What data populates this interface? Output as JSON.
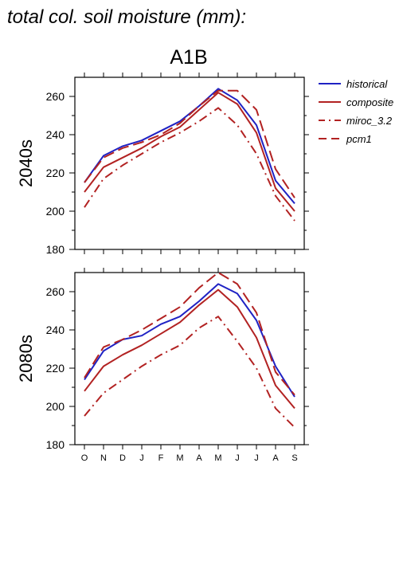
{
  "page": {
    "title": "total col. soil moisture (mm):",
    "scenario": "A1B"
  },
  "legend": [
    {
      "name": "historical",
      "color": "#1f22c4",
      "dash": "solid"
    },
    {
      "name": "composite",
      "color": "#b22222",
      "dash": "solid"
    },
    {
      "name": "miroc_3.2",
      "color": "#b22222",
      "dash": "dashdot"
    },
    {
      "name": "pcm1",
      "color": "#b22222",
      "dash": "dashed"
    }
  ],
  "chart_data": [
    {
      "type": "line",
      "title": "A1B",
      "ylabel": "2040s",
      "xlabel": "",
      "categories": [
        "O",
        "N",
        "D",
        "J",
        "F",
        "M",
        "A",
        "M",
        "J",
        "J",
        "A",
        "S"
      ],
      "ylim": [
        180,
        270
      ],
      "yticks": [
        180,
        200,
        220,
        240,
        260
      ],
      "series": [
        {
          "name": "historical",
          "values": [
            215,
            229,
            234,
            237,
            242,
            247,
            255,
            264,
            258,
            245,
            216,
            204
          ]
        },
        {
          "name": "composite",
          "values": [
            210,
            223,
            228,
            233,
            239,
            244,
            253,
            262,
            256,
            241,
            212,
            200
          ]
        },
        {
          "name": "miroc_3.2",
          "values": [
            202,
            217,
            224,
            230,
            236,
            241,
            247,
            254,
            245,
            230,
            208,
            195
          ]
        },
        {
          "name": "pcm1",
          "values": [
            215,
            228,
            233,
            236,
            240,
            246,
            255,
            263,
            263,
            253,
            222,
            207
          ]
        }
      ]
    },
    {
      "type": "line",
      "title": "",
      "ylabel": "2080s",
      "xlabel": "",
      "categories": [
        "O",
        "N",
        "D",
        "J",
        "F",
        "M",
        "A",
        "M",
        "J",
        "J",
        "A",
        "S"
      ],
      "ylim": [
        180,
        270
      ],
      "yticks": [
        180,
        200,
        220,
        240,
        260
      ],
      "series": [
        {
          "name": "historical",
          "values": [
            214,
            229,
            235,
            237,
            243,
            247,
            255,
            264,
            259,
            245,
            221,
            205
          ]
        },
        {
          "name": "composite",
          "values": [
            208,
            221,
            227,
            232,
            238,
            244,
            253,
            261,
            252,
            236,
            211,
            199
          ]
        },
        {
          "name": "miroc_3.2",
          "values": [
            195,
            207,
            214,
            221,
            227,
            232,
            241,
            247,
            234,
            220,
            199,
            189
          ]
        },
        {
          "name": "pcm1",
          "values": [
            215,
            231,
            235,
            240,
            246,
            252,
            262,
            270,
            264,
            249,
            218,
            206
          ]
        }
      ]
    }
  ]
}
